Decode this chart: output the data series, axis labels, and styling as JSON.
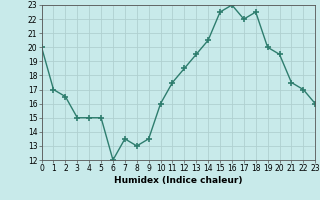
{
  "x": [
    0,
    1,
    2,
    3,
    4,
    5,
    6,
    7,
    8,
    9,
    10,
    11,
    12,
    13,
    14,
    15,
    16,
    17,
    18,
    19,
    20,
    21,
    22,
    23
  ],
  "y": [
    20,
    17,
    16.5,
    15,
    15,
    15,
    12,
    13.5,
    13,
    13.5,
    16,
    17.5,
    18.5,
    19.5,
    20.5,
    22.5,
    23,
    22,
    22.5,
    20,
    19.5,
    17.5,
    17,
    16
  ],
  "xlabel": "Humidex (Indice chaleur)",
  "ylim": [
    12,
    23
  ],
  "xlim": [
    0,
    23
  ],
  "yticks": [
    12,
    13,
    14,
    15,
    16,
    17,
    18,
    19,
    20,
    21,
    22,
    23
  ],
  "xticks": [
    0,
    1,
    2,
    3,
    4,
    5,
    6,
    7,
    8,
    9,
    10,
    11,
    12,
    13,
    14,
    15,
    16,
    17,
    18,
    19,
    20,
    21,
    22,
    23
  ],
  "xlabel_text": "Humidex (Indice chaleur)",
  "line_color": "#2e7d6e",
  "bg_color": "#c8eaea",
  "grid_color": "#b0d0d0",
  "marker": "+",
  "marker_size": 4,
  "tick_fontsize": 5.5,
  "xlabel_fontsize": 6.5
}
